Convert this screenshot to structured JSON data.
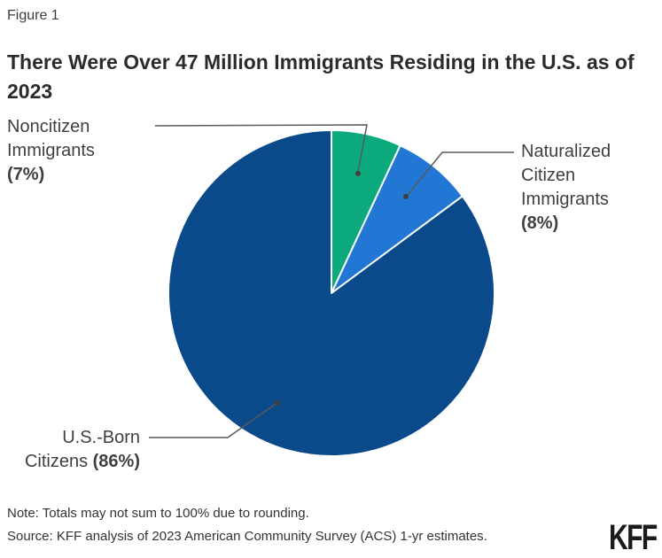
{
  "figure_label": "Figure 1",
  "title": "There Were Over 47 Million Immigrants Residing in the U.S. as of 2023",
  "chart_data": {
    "type": "pie",
    "title": "There Were Over 47 Million Immigrants Residing in the U.S. as of 2023",
    "start_angle_deg": 0,
    "direction": "clockwise",
    "leader_color": "#58595b",
    "slices": [
      {
        "name": "Noncitizen Immigrants",
        "value": 7,
        "color": "#0ba97b"
      },
      {
        "name": "Naturalized Citizen Immigrants",
        "value": 8,
        "color": "#2277d4"
      },
      {
        "name": "U.S.-Born Citizens",
        "value": 86,
        "color": "#0b4a8a"
      }
    ],
    "labels": {
      "noncitizen": {
        "lines": [
          "Noncitizen",
          "Immigrants"
        ],
        "pct": "(7%)"
      },
      "naturalized": {
        "lines": [
          "Naturalized",
          "Citizen",
          "Immigrants"
        ],
        "pct": "(8%)"
      },
      "usborn": {
        "line1": "U.S.-Born",
        "line2": "Citizens",
        "pct": "(86%)"
      }
    }
  },
  "footer": {
    "note": "Note: Totals may not sum to 100% due to rounding.",
    "source": "Source: KFF analysis of 2023 American Community Survey (ACS) 1-yr estimates.",
    "logo": "KFF"
  }
}
